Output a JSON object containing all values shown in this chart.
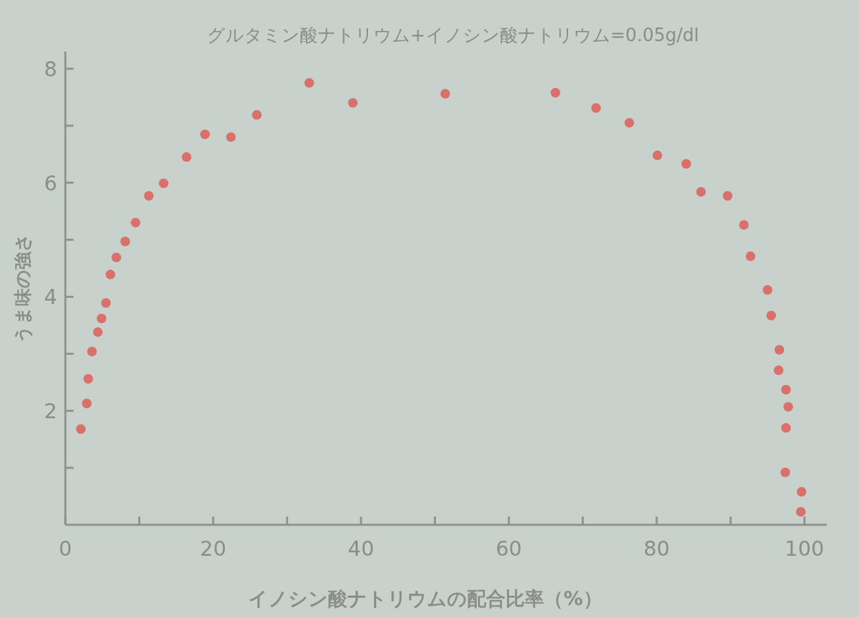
{
  "chart_data": {
    "type": "scatter",
    "title": "グルタミン酸ナトリウム+イノシン酸ナトリウム=0.05g/dl",
    "xlabel": "イノシン酸ナトリウムの配合比率（%）",
    "ylabel": "うま味の強さ",
    "color": "#d9706a",
    "marker": "circle",
    "grid": false,
    "xlim": [
      0,
      103
    ],
    "ylim": [
      0,
      8.3
    ],
    "xticks": [
      0,
      {
        "value": 10,
        "label": null
      },
      20,
      {
        "value": 30,
        "label": null
      },
      40,
      {
        "value": 50,
        "label": null
      },
      60,
      {
        "value": 70,
        "label": null
      },
      80,
      {
        "value": 90,
        "label": null
      },
      100
    ],
    "yticks": [
      {
        "value": 1,
        "label": null
      },
      2,
      {
        "value": 3,
        "label": null
      },
      4,
      {
        "value": 5,
        "label": null
      },
      6,
      {
        "value": 7,
        "label": null
      },
      8
    ],
    "x": [
      2.1,
      2.9,
      3.1,
      3.6,
      4.4,
      4.9,
      5.5,
      6.1,
      6.9,
      8.1,
      9.5,
      11.3,
      13.3,
      16.4,
      18.9,
      22.4,
      25.9,
      33.0,
      38.9,
      51.4,
      66.3,
      71.8,
      76.3,
      80.1,
      84.0,
      86.0,
      89.6,
      91.8,
      92.7,
      95.0,
      95.5,
      96.6,
      96.5,
      97.5,
      97.8,
      97.5,
      97.4,
      99.6,
      99.5
    ],
    "values": [
      1.68,
      2.13,
      2.56,
      3.04,
      3.38,
      3.62,
      3.89,
      4.39,
      4.69,
      4.97,
      5.3,
      5.77,
      5.99,
      6.45,
      6.85,
      6.8,
      7.19,
      7.75,
      7.4,
      7.56,
      7.58,
      7.31,
      7.05,
      6.48,
      6.33,
      5.84,
      5.77,
      5.26,
      4.71,
      4.12,
      3.67,
      3.07,
      2.71,
      2.37,
      2.07,
      1.7,
      0.92,
      0.58,
      0.23
    ]
  }
}
